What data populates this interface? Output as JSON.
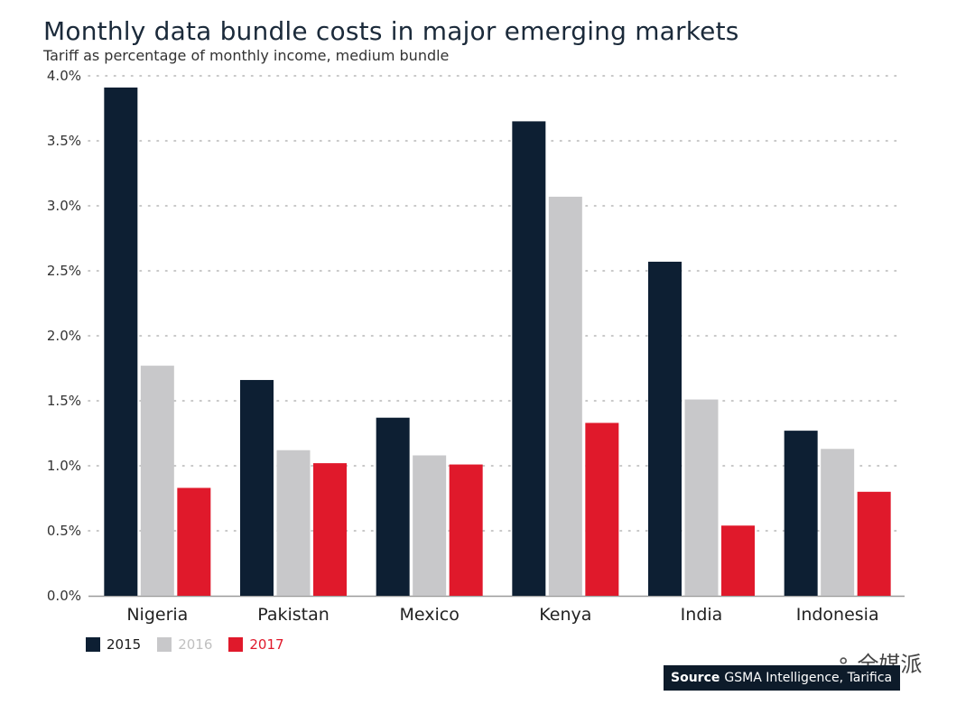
{
  "chart_data": {
    "type": "bar",
    "title": "Monthly data bundle costs in major emerging markets",
    "subtitle": "Tariff as percentage of monthly income, medium bundle",
    "categories": [
      "Nigeria",
      "Pakistan",
      "Mexico",
      "Kenya",
      "India",
      "Indonesia"
    ],
    "series": [
      {
        "name": "2015",
        "color": "#0d1f33",
        "values": [
          3.91,
          1.66,
          1.37,
          3.65,
          2.57,
          1.27
        ]
      },
      {
        "name": "2016",
        "color": "#c8c8ca",
        "values": [
          1.77,
          1.12,
          1.08,
          3.07,
          1.51,
          1.13
        ]
      },
      {
        "name": "2017",
        "color": "#e0192b",
        "values": [
          0.83,
          1.02,
          1.01,
          1.33,
          0.54,
          0.8
        ]
      }
    ],
    "ylim": [
      0,
      4.0
    ],
    "yticks": [
      "0.0%",
      "0.5%",
      "1.0%",
      "1.5%",
      "2.0%",
      "2.5%",
      "3.0%",
      "3.5%",
      "4.0%"
    ],
    "ytick_values": [
      0,
      0.5,
      1.0,
      1.5,
      2.0,
      2.5,
      3.0,
      3.5,
      4.0
    ],
    "xlabel": "",
    "ylabel": "",
    "grid": true,
    "legend_position": "bottom-left"
  },
  "source": {
    "label": "Source",
    "text": "GSMA Intelligence, Tarifica"
  },
  "watermark": {
    "icon": "chat-bubbles-icon",
    "text": "全媒派"
  }
}
